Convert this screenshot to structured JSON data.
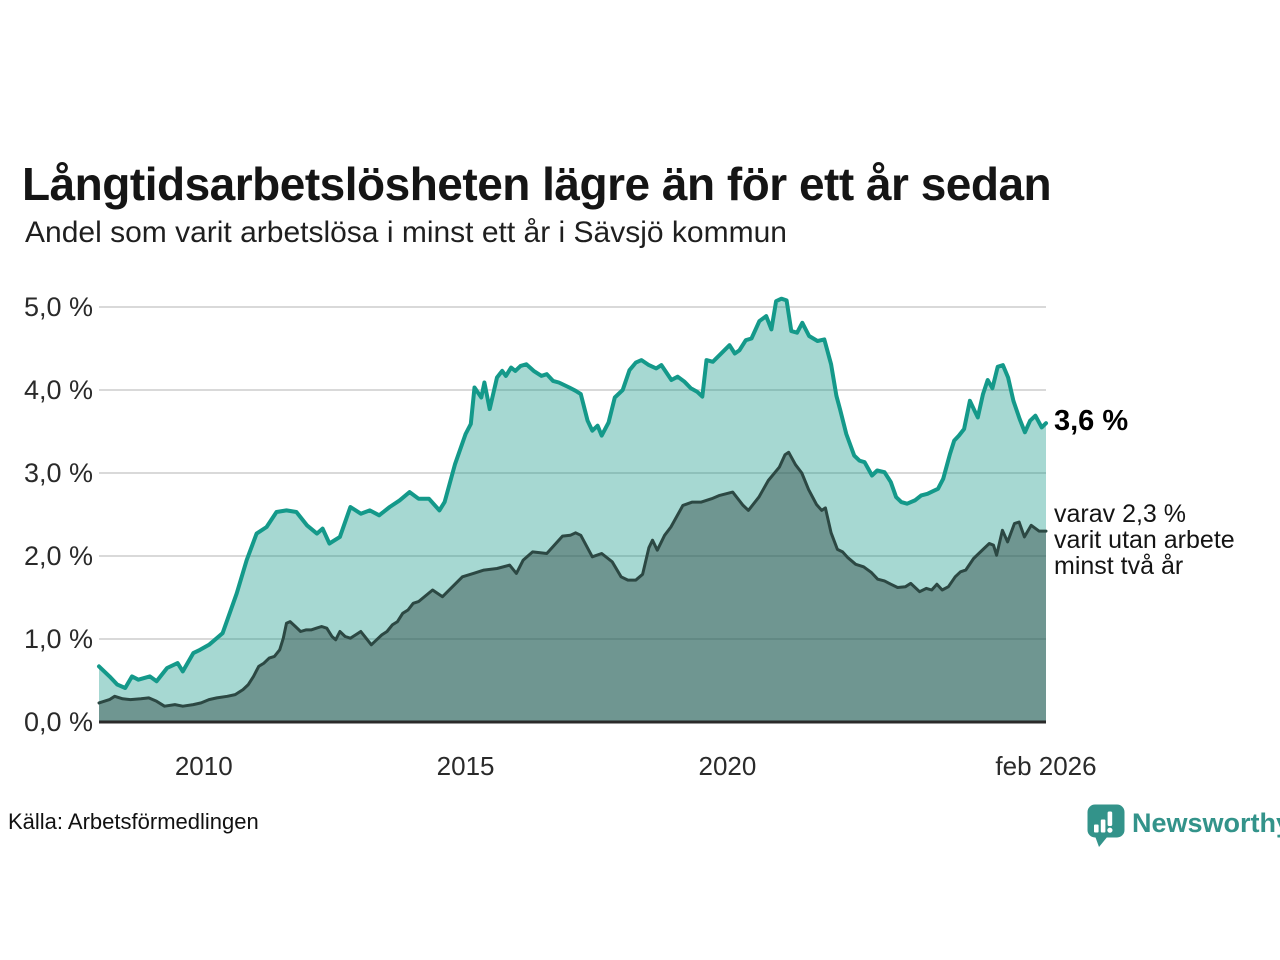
{
  "header": {
    "title": "Långtidsarbetslösheten lägre än för ett år sedan",
    "subtitle": "Andel som varit arbetslösa i minst ett år i Sävsjö kommun"
  },
  "annotations": {
    "latest_value": "3,6 %",
    "secondary": {
      "lines": [
        "varav 2,3 %",
        "varit utan arbete",
        "minst två år"
      ]
    }
  },
  "footer": {
    "source": "Källa: Arbetsförmedlingen",
    "brand": "Newsworthy",
    "brand_icon": "newsworthy-speech-bubble-chart-icon"
  },
  "colors": {
    "background": "#ffffff",
    "grid": "#d9d9d9",
    "axis": "#2a2a2a",
    "brand_teal": "#33938a"
  },
  "chart_data": {
    "type": "area",
    "title": "Långtidsarbetslösheten lägre än för ett år sedan",
    "subtitle": "Andel som varit arbetslösa i minst ett år i Sävsjö kommun",
    "xlabel": "",
    "ylabel": "",
    "unit": "%",
    "xlim": [
      2008.0,
      2026.083
    ],
    "ylim": [
      0,
      5.2
    ],
    "grid": "horizontal",
    "legend_position": "none",
    "y_ticks": [
      {
        "label": "0,0 %",
        "value": 0
      },
      {
        "label": "1,0 %",
        "value": 1
      },
      {
        "label": "2,0 %",
        "value": 2
      },
      {
        "label": "3,0 %",
        "value": 3
      },
      {
        "label": "4,0 %",
        "value": 4
      },
      {
        "label": "5,0 %",
        "value": 5
      }
    ],
    "x_ticks": [
      {
        "label": "2010",
        "year": 2010
      },
      {
        "label": "2015",
        "year": 2015
      },
      {
        "label": "2020",
        "year": 2020
      },
      {
        "label": "feb 2026",
        "year": 2026.083
      }
    ],
    "last_values": {
      "minst_ett_ar": 3.6,
      "minst_tva_ar": 2.3
    },
    "series": [
      {
        "name": "Arbetslösa minst ett år",
        "color": "#14998a",
        "fill": "rgba(20,153,138,0.38)",
        "line_width": 4,
        "points": [
          [
            2008.0,
            0.67
          ],
          [
            2008.2,
            0.55
          ],
          [
            2008.35,
            0.45
          ],
          [
            2008.5,
            0.41
          ],
          [
            2008.63,
            0.55
          ],
          [
            2008.75,
            0.51
          ],
          [
            2008.97,
            0.55
          ],
          [
            2009.1,
            0.49
          ],
          [
            2009.3,
            0.65
          ],
          [
            2009.5,
            0.71
          ],
          [
            2009.6,
            0.61
          ],
          [
            2009.8,
            0.83
          ],
          [
            2009.93,
            0.87
          ],
          [
            2010.1,
            0.93
          ],
          [
            2010.36,
            1.07
          ],
          [
            2010.63,
            1.55
          ],
          [
            2010.82,
            1.95
          ],
          [
            2011.01,
            2.27
          ],
          [
            2011.2,
            2.35
          ],
          [
            2011.39,
            2.53
          ],
          [
            2011.58,
            2.55
          ],
          [
            2011.77,
            2.53
          ],
          [
            2011.97,
            2.37
          ],
          [
            2012.16,
            2.27
          ],
          [
            2012.27,
            2.33
          ],
          [
            2012.4,
            2.15
          ],
          [
            2012.6,
            2.23
          ],
          [
            2012.8,
            2.59
          ],
          [
            2013.0,
            2.51
          ],
          [
            2013.17,
            2.55
          ],
          [
            2013.35,
            2.49
          ],
          [
            2013.55,
            2.59
          ],
          [
            2013.74,
            2.67
          ],
          [
            2013.93,
            2.77
          ],
          [
            2014.1,
            2.69
          ],
          [
            2014.3,
            2.69
          ],
          [
            2014.5,
            2.55
          ],
          [
            2014.6,
            2.65
          ],
          [
            2014.8,
            3.11
          ],
          [
            2015.0,
            3.47
          ],
          [
            2015.1,
            3.59
          ],
          [
            2015.17,
            4.03
          ],
          [
            2015.3,
            3.91
          ],
          [
            2015.36,
            4.09
          ],
          [
            2015.46,
            3.77
          ],
          [
            2015.6,
            4.15
          ],
          [
            2015.7,
            4.23
          ],
          [
            2015.77,
            4.17
          ],
          [
            2015.87,
            4.27
          ],
          [
            2015.95,
            4.23
          ],
          [
            2016.05,
            4.29
          ],
          [
            2016.16,
            4.31
          ],
          [
            2016.3,
            4.23
          ],
          [
            2016.45,
            4.17
          ],
          [
            2016.55,
            4.19
          ],
          [
            2016.67,
            4.11
          ],
          [
            2016.78,
            4.09
          ],
          [
            2016.98,
            4.03
          ],
          [
            2017.1,
            3.99
          ],
          [
            2017.2,
            3.95
          ],
          [
            2017.33,
            3.63
          ],
          [
            2017.42,
            3.51
          ],
          [
            2017.52,
            3.57
          ],
          [
            2017.6,
            3.45
          ],
          [
            2017.73,
            3.61
          ],
          [
            2017.85,
            3.91
          ],
          [
            2018.0,
            4.0
          ],
          [
            2018.13,
            4.24
          ],
          [
            2018.25,
            4.33
          ],
          [
            2018.36,
            4.36
          ],
          [
            2018.5,
            4.3
          ],
          [
            2018.64,
            4.26
          ],
          [
            2018.74,
            4.3
          ],
          [
            2018.93,
            4.12
          ],
          [
            2019.05,
            4.16
          ],
          [
            2019.18,
            4.1
          ],
          [
            2019.3,
            4.02
          ],
          [
            2019.42,
            3.98
          ],
          [
            2019.52,
            3.92
          ],
          [
            2019.6,
            4.36
          ],
          [
            2019.72,
            4.34
          ],
          [
            2019.85,
            4.42
          ],
          [
            2020.04,
            4.54
          ],
          [
            2020.14,
            4.44
          ],
          [
            2020.23,
            4.48
          ],
          [
            2020.35,
            4.6
          ],
          [
            2020.46,
            4.62
          ],
          [
            2020.61,
            4.83
          ],
          [
            2020.74,
            4.89
          ],
          [
            2020.84,
            4.73
          ],
          [
            2020.93,
            5.07
          ],
          [
            2021.03,
            5.1
          ],
          [
            2021.13,
            5.08
          ],
          [
            2021.22,
            4.71
          ],
          [
            2021.33,
            4.69
          ],
          [
            2021.43,
            4.81
          ],
          [
            2021.56,
            4.65
          ],
          [
            2021.72,
            4.59
          ],
          [
            2021.85,
            4.61
          ],
          [
            2021.98,
            4.31
          ],
          [
            2022.08,
            3.93
          ],
          [
            2022.15,
            3.77
          ],
          [
            2022.27,
            3.47
          ],
          [
            2022.42,
            3.21
          ],
          [
            2022.52,
            3.15
          ],
          [
            2022.62,
            3.13
          ],
          [
            2022.76,
            2.97
          ],
          [
            2022.86,
            3.03
          ],
          [
            2023.0,
            3.01
          ],
          [
            2023.12,
            2.89
          ],
          [
            2023.22,
            2.71
          ],
          [
            2023.32,
            2.65
          ],
          [
            2023.43,
            2.63
          ],
          [
            2023.58,
            2.67
          ],
          [
            2023.7,
            2.73
          ],
          [
            2023.82,
            2.75
          ],
          [
            2023.92,
            2.78
          ],
          [
            2024.02,
            2.81
          ],
          [
            2024.12,
            2.93
          ],
          [
            2024.25,
            3.23
          ],
          [
            2024.33,
            3.39
          ],
          [
            2024.42,
            3.45
          ],
          [
            2024.52,
            3.53
          ],
          [
            2024.63,
            3.87
          ],
          [
            2024.72,
            3.75
          ],
          [
            2024.78,
            3.67
          ],
          [
            2024.88,
            3.95
          ],
          [
            2024.97,
            4.12
          ],
          [
            2025.06,
            4.02
          ],
          [
            2025.16,
            4.28
          ],
          [
            2025.26,
            4.3
          ],
          [
            2025.36,
            4.15
          ],
          [
            2025.46,
            3.87
          ],
          [
            2025.58,
            3.65
          ],
          [
            2025.68,
            3.49
          ],
          [
            2025.78,
            3.63
          ],
          [
            2025.88,
            3.69
          ],
          [
            2026.0,
            3.55
          ],
          [
            2026.083,
            3.6
          ]
        ]
      },
      {
        "name": "Varav utan arbete minst två år",
        "color": "#2c4843",
        "fill": "rgba(44,72,67,0.45)",
        "line_width": 3,
        "points": [
          [
            2008.0,
            0.23
          ],
          [
            2008.2,
            0.27
          ],
          [
            2008.3,
            0.31
          ],
          [
            2008.45,
            0.28
          ],
          [
            2008.6,
            0.27
          ],
          [
            2008.8,
            0.28
          ],
          [
            2008.95,
            0.29
          ],
          [
            2009.1,
            0.25
          ],
          [
            2009.25,
            0.19
          ],
          [
            2009.45,
            0.21
          ],
          [
            2009.6,
            0.19
          ],
          [
            2009.8,
            0.21
          ],
          [
            2009.95,
            0.23
          ],
          [
            2010.1,
            0.27
          ],
          [
            2010.25,
            0.29
          ],
          [
            2010.45,
            0.31
          ],
          [
            2010.6,
            0.33
          ],
          [
            2010.75,
            0.39
          ],
          [
            2010.85,
            0.45
          ],
          [
            2010.95,
            0.55
          ],
          [
            2011.05,
            0.67
          ],
          [
            2011.15,
            0.71
          ],
          [
            2011.25,
            0.77
          ],
          [
            2011.35,
            0.79
          ],
          [
            2011.45,
            0.87
          ],
          [
            2011.52,
            1.01
          ],
          [
            2011.58,
            1.19
          ],
          [
            2011.65,
            1.21
          ],
          [
            2011.75,
            1.15
          ],
          [
            2011.85,
            1.09
          ],
          [
            2011.95,
            1.11
          ],
          [
            2012.05,
            1.11
          ],
          [
            2012.15,
            1.13
          ],
          [
            2012.25,
            1.15
          ],
          [
            2012.35,
            1.13
          ],
          [
            2012.45,
            1.03
          ],
          [
            2012.52,
            0.99
          ],
          [
            2012.6,
            1.09
          ],
          [
            2012.7,
            1.03
          ],
          [
            2012.8,
            1.01
          ],
          [
            2012.9,
            1.05
          ],
          [
            2013.0,
            1.09
          ],
          [
            2013.1,
            1.01
          ],
          [
            2013.2,
            0.93
          ],
          [
            2013.3,
            0.99
          ],
          [
            2013.4,
            1.05
          ],
          [
            2013.5,
            1.09
          ],
          [
            2013.6,
            1.17
          ],
          [
            2013.7,
            1.21
          ],
          [
            2013.8,
            1.31
          ],
          [
            2013.9,
            1.35
          ],
          [
            2014.0,
            1.43
          ],
          [
            2014.1,
            1.45
          ],
          [
            2014.37,
            1.59
          ],
          [
            2014.56,
            1.51
          ],
          [
            2014.75,
            1.63
          ],
          [
            2014.94,
            1.75
          ],
          [
            2015.15,
            1.79
          ],
          [
            2015.35,
            1.83
          ],
          [
            2015.6,
            1.85
          ],
          [
            2015.84,
            1.89
          ],
          [
            2015.97,
            1.79
          ],
          [
            2016.1,
            1.95
          ],
          [
            2016.28,
            2.05
          ],
          [
            2016.55,
            2.03
          ],
          [
            2016.85,
            2.24
          ],
          [
            2017.0,
            2.25
          ],
          [
            2017.1,
            2.28
          ],
          [
            2017.2,
            2.25
          ],
          [
            2017.42,
            1.99
          ],
          [
            2017.6,
            2.03
          ],
          [
            2017.8,
            1.93
          ],
          [
            2017.97,
            1.75
          ],
          [
            2018.1,
            1.71
          ],
          [
            2018.25,
            1.71
          ],
          [
            2018.38,
            1.78
          ],
          [
            2018.5,
            2.1
          ],
          [
            2018.57,
            2.19
          ],
          [
            2018.66,
            2.07
          ],
          [
            2018.8,
            2.25
          ],
          [
            2018.92,
            2.35
          ],
          [
            2019.15,
            2.61
          ],
          [
            2019.33,
            2.65
          ],
          [
            2019.5,
            2.65
          ],
          [
            2019.7,
            2.69
          ],
          [
            2019.85,
            2.73
          ],
          [
            2020.1,
            2.77
          ],
          [
            2020.3,
            2.61
          ],
          [
            2020.4,
            2.55
          ],
          [
            2020.6,
            2.71
          ],
          [
            2020.78,
            2.91
          ],
          [
            2020.99,
            3.07
          ],
          [
            2021.1,
            3.22
          ],
          [
            2021.17,
            3.25
          ],
          [
            2021.3,
            3.1
          ],
          [
            2021.42,
            3.0
          ],
          [
            2021.55,
            2.8
          ],
          [
            2021.7,
            2.62
          ],
          [
            2021.8,
            2.55
          ],
          [
            2021.87,
            2.58
          ],
          [
            2021.98,
            2.28
          ],
          [
            2022.1,
            2.08
          ],
          [
            2022.2,
            2.05
          ],
          [
            2022.3,
            1.98
          ],
          [
            2022.45,
            1.9
          ],
          [
            2022.6,
            1.87
          ],
          [
            2022.75,
            1.8
          ],
          [
            2022.87,
            1.72
          ],
          [
            2023.0,
            1.7
          ],
          [
            2023.12,
            1.66
          ],
          [
            2023.25,
            1.62
          ],
          [
            2023.4,
            1.63
          ],
          [
            2023.5,
            1.67
          ],
          [
            2023.67,
            1.57
          ],
          [
            2023.8,
            1.61
          ],
          [
            2023.9,
            1.59
          ],
          [
            2024.0,
            1.66
          ],
          [
            2024.1,
            1.59
          ],
          [
            2024.22,
            1.63
          ],
          [
            2024.35,
            1.75
          ],
          [
            2024.45,
            1.81
          ],
          [
            2024.55,
            1.83
          ],
          [
            2024.7,
            1.97
          ],
          [
            2024.8,
            2.03
          ],
          [
            2024.9,
            2.09
          ],
          [
            2025.0,
            2.15
          ],
          [
            2025.08,
            2.13
          ],
          [
            2025.14,
            2.01
          ],
          [
            2025.25,
            2.31
          ],
          [
            2025.35,
            2.17
          ],
          [
            2025.48,
            2.39
          ],
          [
            2025.57,
            2.41
          ],
          [
            2025.67,
            2.23
          ],
          [
            2025.8,
            2.37
          ],
          [
            2025.95,
            2.3
          ],
          [
            2026.083,
            2.3
          ]
        ]
      }
    ]
  }
}
